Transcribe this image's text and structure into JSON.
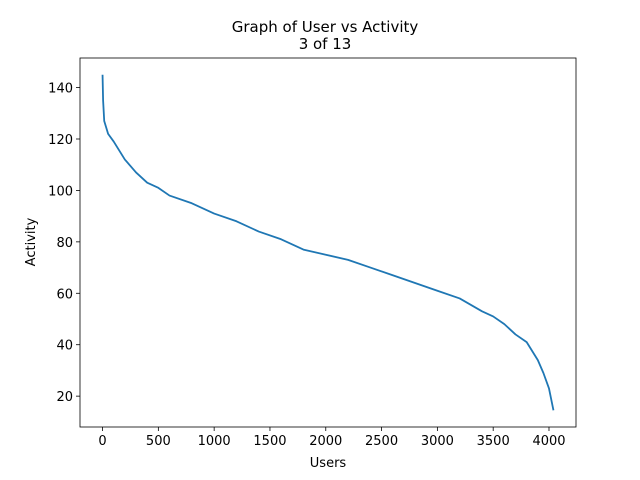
{
  "chart_data": {
    "type": "line",
    "title": "Graph of User vs Activity",
    "subtitle": "3 of 13",
    "x_label": "Users",
    "y_label": "Activity",
    "x": [
      0,
      5,
      15,
      50,
      100,
      200,
      300,
      400,
      500,
      600,
      800,
      1000,
      1200,
      1400,
      1600,
      1800,
      2000,
      2200,
      2400,
      2600,
      2800,
      3000,
      3200,
      3400,
      3500,
      3600,
      3700,
      3800,
      3900,
      3950,
      4000,
      4040
    ],
    "series": [
      {
        "name": "Activity",
        "color": "#1f77b4",
        "values": [
          145,
          135,
          127,
          122,
          119,
          112,
          107,
          103,
          101,
          98,
          95,
          91,
          88,
          84,
          81,
          77,
          75,
          73,
          70,
          67,
          64,
          61,
          58,
          53,
          51,
          48,
          44,
          41,
          34,
          29,
          23,
          14.5
        ]
      }
    ],
    "xlim": [
      -202,
      4242
    ],
    "ylim": [
      8.0,
      151.5
    ],
    "xticks": [
      0,
      500,
      1000,
      1500,
      2000,
      2500,
      3000,
      3500,
      4000
    ],
    "yticks": [
      20,
      40,
      60,
      80,
      100,
      120,
      140
    ]
  }
}
